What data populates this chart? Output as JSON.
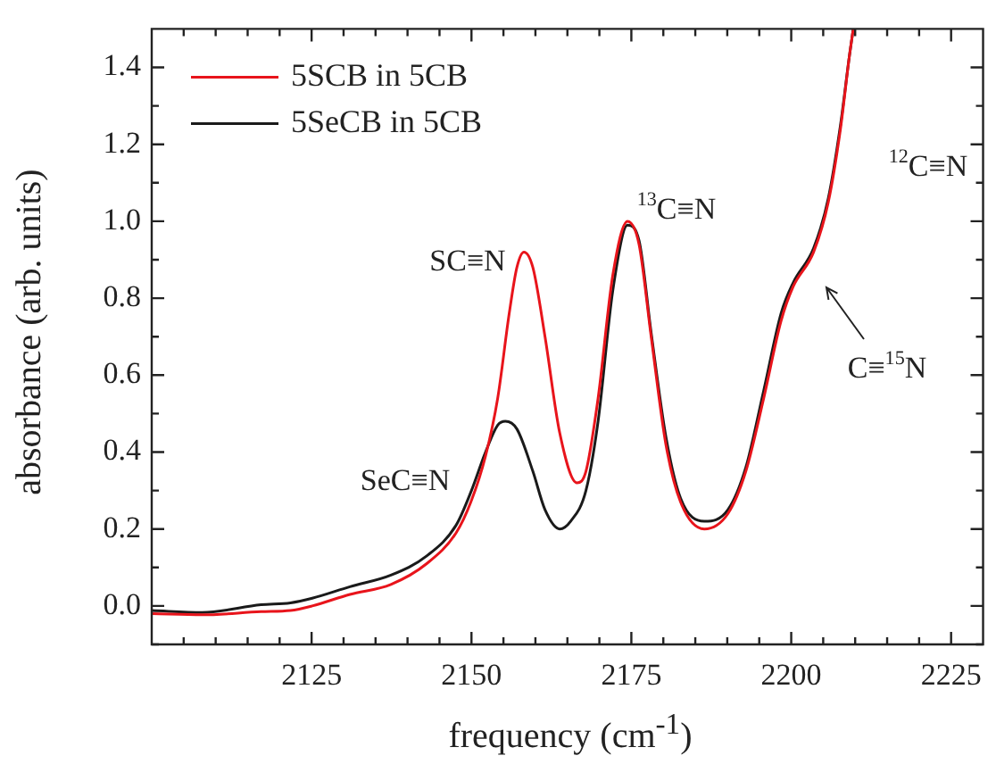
{
  "chart_data": {
    "type": "line",
    "xlabel": "frequency (cm$^{-1}$)",
    "ylabel": "absorbance (arb. units)",
    "xlim": [
      2100,
      2230
    ],
    "ylim": [
      -0.1,
      1.5
    ],
    "xticks": [
      {
        "value": 2105,
        "label": null
      },
      {
        "value": 2110,
        "label": null
      },
      {
        "value": 2115,
        "label": null
      },
      {
        "value": 2120,
        "label": null
      },
      2125,
      {
        "value": 2130,
        "label": null
      },
      {
        "value": 2135,
        "label": null
      },
      {
        "value": 2140,
        "label": null
      },
      {
        "value": 2145,
        "label": null
      },
      2150,
      {
        "value": 2155,
        "label": null
      },
      {
        "value": 2160,
        "label": null
      },
      {
        "value": 2165,
        "label": null
      },
      {
        "value": 2170,
        "label": null
      },
      2175,
      {
        "value": 2180,
        "label": null
      },
      {
        "value": 2185,
        "label": null
      },
      {
        "value": 2190,
        "label": null
      },
      {
        "value": 2195,
        "label": null
      },
      2200,
      {
        "value": 2205,
        "label": null
      },
      {
        "value": 2210,
        "label": null
      },
      {
        "value": 2215,
        "label": null
      },
      {
        "value": 2220,
        "label": null
      },
      2225
    ],
    "yticks": [
      {
        "value": -0.1,
        "label": null
      },
      {
        "value": 0,
        "label": "0.0"
      },
      {
        "value": 0.1,
        "label": null
      },
      0.2,
      {
        "value": 0.3,
        "label": null
      },
      0.4,
      {
        "value": 0.5,
        "label": null
      },
      0.6,
      {
        "value": 0.7,
        "label": null
      },
      0.8,
      {
        "value": 0.9,
        "label": null
      },
      {
        "value": 1,
        "label": "1.0"
      },
      {
        "value": 1.1,
        "label": null
      },
      1.2,
      {
        "value": 1.3,
        "label": null
      },
      1.4
    ],
    "grid": false,
    "legend": "top left",
    "marker": "none",
    "line_style": "solid",
    "series": [
      {
        "name": "5SCB in 5CB",
        "color": "#e8141b",
        "x": [
          2100,
          2107.9,
          2117.1,
          2121.7,
          2125.1,
          2131,
          2137.4,
          2143,
          2147.6,
          2149.9,
          2152.2,
          2154.1,
          2155.9,
          2157.1,
          2158.2,
          2159.6,
          2161.5,
          2163.8,
          2166.5,
          2167.9,
          2169.8,
          2172.1,
          2174.4,
          2176.2,
          2178.1,
          2180.4,
          2182.7,
          2186.4,
          2190.1,
          2192.9,
          2195.7,
          2198.4,
          2200.3,
          2203.5,
          2205.8,
          2207.7,
          2209.1,
          2209.7
        ],
        "values": [
          -0.02,
          -0.023,
          -0.015,
          -0.012,
          0,
          0.03,
          0.056,
          0.11,
          0.19,
          0.27,
          0.39,
          0.54,
          0.76,
          0.88,
          0.92,
          0.88,
          0.7,
          0.45,
          0.32,
          0.35,
          0.54,
          0.86,
          1,
          0.94,
          0.7,
          0.42,
          0.27,
          0.2,
          0.24,
          0.35,
          0.54,
          0.74,
          0.83,
          0.92,
          1.05,
          1.24,
          1.43,
          1.5
        ]
      },
      {
        "name": "5SeCB in 5CB",
        "color": "#1a1a1a",
        "x": [
          2100,
          2107.9,
          2117.1,
          2121.7,
          2125.1,
          2131,
          2137.4,
          2143,
          2147.6,
          2150,
          2152.2,
          2154.1,
          2155.3,
          2157.1,
          2159.6,
          2161.5,
          2163.8,
          2165.5,
          2167.9,
          2169.8,
          2172.1,
          2174.4,
          2176.2,
          2178.1,
          2180.4,
          2182.7,
          2186.4,
          2190.1,
          2192.9,
          2195.7,
          2198.4,
          2200.3,
          2203.5,
          2205.8,
          2207.7,
          2209.1,
          2209.7
        ],
        "values": [
          -0.012,
          -0.017,
          0.003,
          0.008,
          0.02,
          0.05,
          0.08,
          0.13,
          0.21,
          0.3,
          0.4,
          0.47,
          0.48,
          0.46,
          0.35,
          0.25,
          0.2,
          0.22,
          0.3,
          0.48,
          0.82,
          0.99,
          0.95,
          0.71,
          0.44,
          0.28,
          0.22,
          0.25,
          0.36,
          0.56,
          0.76,
          0.84,
          0.93,
          1.06,
          1.25,
          1.43,
          1.5
        ]
      }
    ],
    "annotations": [
      "SC≡N",
      "SeC≡N",
      "$^{13}$C≡N",
      "$^{12}$C≡N",
      "C≡$^{15}$N"
    ]
  }
}
